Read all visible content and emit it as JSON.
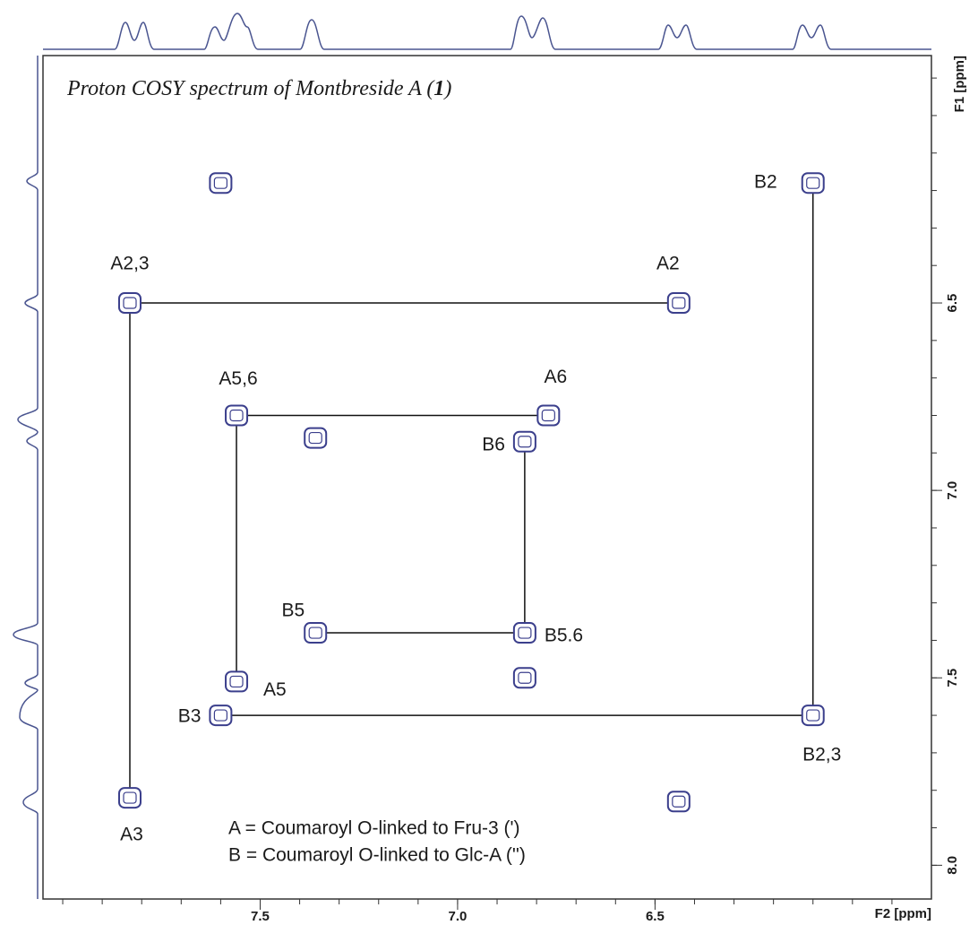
{
  "chart_data": {
    "type": "scatter",
    "title": "Proton COSY spectrum of Montbreside A (",
    "title_bold": "1",
    "title_end": ")",
    "x_label": "F2 [ppm]",
    "y_label": "F1 [ppm]",
    "notes": [
      "A = Coumaroyl O-linked to Fru-3 (')",
      "B = Coumaroyl O-linked to Glc-A ('')"
    ],
    "xlim": [
      8.05,
      5.8
    ],
    "ylim": [
      5.84,
      8.09
    ],
    "xticks": [
      7.5,
      {
        "value": 7,
        "label": "7.0"
      },
      6.5
    ],
    "yticks": [
      6.5,
      {
        "value": 7,
        "label": "7.0"
      },
      7.5,
      {
        "value": 8,
        "label": "8.0"
      }
    ],
    "xminorticks": [
      8.0,
      7.9,
      7.8,
      7.7,
      7.6,
      7.5,
      7.4,
      7.3,
      7.2,
      7.1,
      7.0,
      6.9,
      6.8,
      6.7,
      6.6,
      6.5,
      6.4,
      6.3,
      6.2,
      6.1,
      6.0,
      5.9
    ],
    "yminorticks": [
      5.9,
      6.0,
      6.1,
      6.2,
      6.3,
      6.4,
      6.5,
      6.6,
      6.7,
      6.8,
      6.9,
      7.0,
      7.1,
      7.2,
      7.3,
      7.4,
      7.5,
      7.6,
      7.7,
      7.8,
      7.9,
      8.0
    ],
    "color": "#3b3f8c",
    "x": [
      7.6,
      6.1,
      7.83,
      6.44,
      7.56,
      7.36,
      6.77,
      6.83,
      7.36,
      6.83,
      7.56,
      7.6,
      6.83,
      6.1,
      7.83,
      6.44
    ],
    "y": [
      6.18,
      6.18,
      6.5,
      6.5,
      6.8,
      6.86,
      6.8,
      6.87,
      7.38,
      7.38,
      7.51,
      7.6,
      7.5,
      7.6,
      7.82,
      7.83
    ],
    "labels": [
      null,
      "B2",
      "A2,3",
      "A2",
      "A5,6",
      null,
      "A6",
      "B6",
      "B5",
      "B5.6",
      "A5",
      "B3",
      null,
      "B2,3",
      "A3",
      null
    ],
    "links": [
      [
        2,
        3
      ],
      [
        2,
        14
      ],
      [
        4,
        6
      ],
      [
        4,
        10
      ],
      [
        7,
        9
      ],
      [
        8,
        9
      ],
      [
        11,
        13
      ],
      [
        1,
        13
      ]
    ]
  }
}
